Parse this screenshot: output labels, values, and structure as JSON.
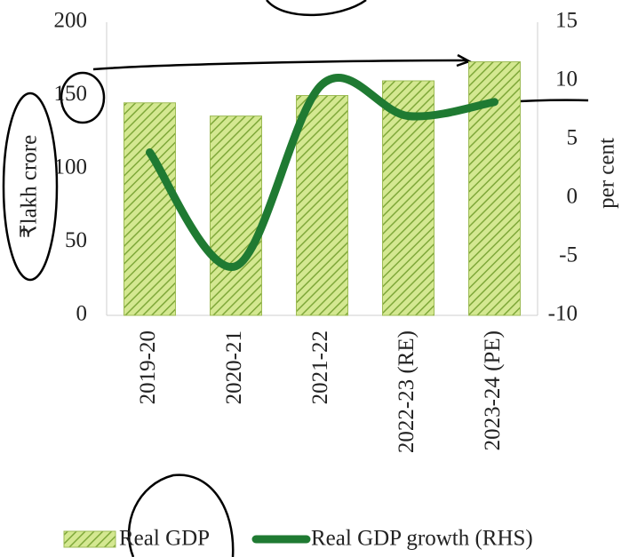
{
  "chart_data": {
    "type": "bar",
    "categories": [
      "2019-20",
      "2020-21",
      "2021-22",
      "2022-23 (RE)",
      "2023-24 (PE)"
    ],
    "series": [
      {
        "name": "Real GDP",
        "type": "bar",
        "color": "#d4e891",
        "values": [
          145,
          136,
          150,
          160,
          173
        ]
      },
      {
        "name": "Real GDP growth (RHS)",
        "type": "line",
        "axis": "y2",
        "color": "#1f7a32",
        "values": [
          3.9,
          -5.8,
          9.7,
          7.0,
          8.2
        ]
      }
    ],
    "y_label": "₹lakh crore",
    "y2_label": "per cent",
    "ylim": [
      0,
      200
    ],
    "yticks": [
      0,
      50,
      100,
      150,
      200
    ],
    "y2lim": [
      -10,
      15
    ],
    "y2ticks": [
      -10,
      -5,
      0,
      5,
      10,
      15
    ],
    "grid": false,
    "legend": "bottom"
  }
}
